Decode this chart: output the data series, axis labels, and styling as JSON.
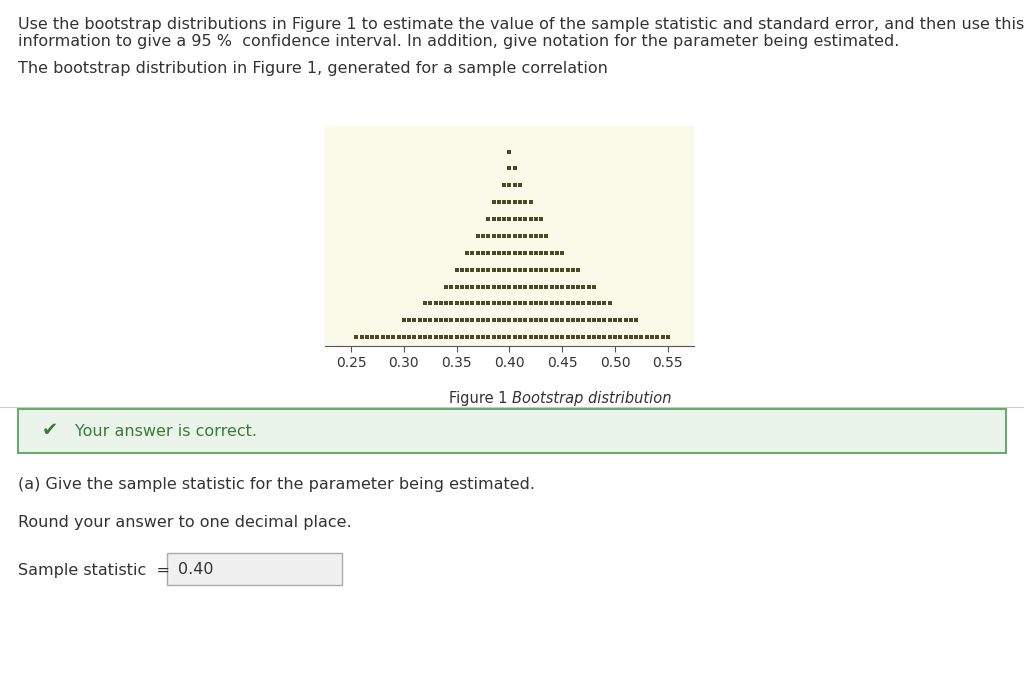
{
  "page_bg": "#ffffff",
  "header_text": "Use the bootstrap distributions in Figure 1 to estimate the value of the sample statistic and standard error, and then use this\ninformation to give a 95 %  confidence interval. In addition, give notation for the parameter being estimated.",
  "subheader_text": "The bootstrap distribution in Figure 1, generated for a sample correlation",
  "plot_bg": "#fafae8",
  "dot_color": "#4a4a2a",
  "dot_marker": "s",
  "dot_size": 2.2,
  "xlim": [
    0.225,
    0.575
  ],
  "xticks": [
    0.25,
    0.3,
    0.35,
    0.4,
    0.45,
    0.5,
    0.55
  ],
  "bin_centers": [
    0.255,
    0.26,
    0.265,
    0.27,
    0.275,
    0.28,
    0.285,
    0.29,
    0.295,
    0.3,
    0.305,
    0.31,
    0.315,
    0.32,
    0.325,
    0.33,
    0.335,
    0.34,
    0.345,
    0.35,
    0.355,
    0.36,
    0.365,
    0.37,
    0.375,
    0.38,
    0.385,
    0.39,
    0.395,
    0.4,
    0.405,
    0.41,
    0.415,
    0.42,
    0.425,
    0.43,
    0.435,
    0.44,
    0.445,
    0.45,
    0.455,
    0.46,
    0.465,
    0.47,
    0.475,
    0.48,
    0.485,
    0.49,
    0.495,
    0.5,
    0.505,
    0.51,
    0.515,
    0.52,
    0.525,
    0.53,
    0.535,
    0.54,
    0.545,
    0.55
  ],
  "bin_counts": [
    1,
    1,
    1,
    1,
    1,
    1,
    1,
    1,
    1,
    2,
    2,
    2,
    2,
    3,
    3,
    3,
    3,
    4,
    4,
    5,
    5,
    6,
    6,
    7,
    7,
    8,
    9,
    9,
    10,
    12,
    11,
    10,
    9,
    9,
    8,
    8,
    7,
    6,
    6,
    6,
    5,
    5,
    5,
    4,
    4,
    4,
    3,
    3,
    3,
    2,
    2,
    2,
    2,
    2,
    1,
    1,
    1,
    1,
    1,
    1
  ],
  "correct_banner_bg": "#eaf4ea",
  "correct_banner_border": "#6aaa6a",
  "correct_banner_text": "Your answer is correct.",
  "check_color": "#3a7a3a",
  "part_a_text": "(a) Give the sample statistic for the parameter being estimated.",
  "round_text": "Round your answer to one decimal place.",
  "sample_statistic_label": "Sample statistic  =",
  "sample_statistic_value": "0.40",
  "input_box_bg": "#f0f0f0",
  "input_box_border": "#aaaaaa",
  "text_color": "#333333",
  "header_fontsize": 11.5,
  "body_fontsize": 11.5,
  "caption_fontsize": 10.5,
  "tick_fontsize": 10
}
